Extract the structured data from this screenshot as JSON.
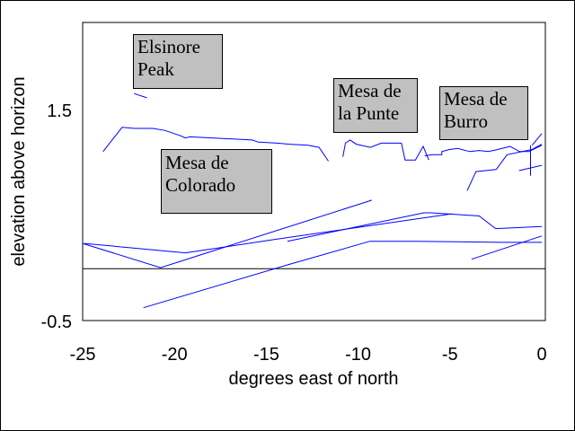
{
  "chart_data": {
    "type": "line",
    "title": "",
    "xlabel": "degrees east of north",
    "ylabel": "elevation above horizon",
    "xlim": [
      -25,
      0
    ],
    "ylim": [
      -0.5,
      2.33
    ],
    "x_ticks": [
      "-25",
      "-20",
      "-15",
      "-10",
      "-5",
      "0"
    ],
    "x_tick_values": [
      -25,
      -20,
      -15,
      -10,
      -5,
      0
    ],
    "y_ticks": [
      "1.5",
      "-0.5"
    ],
    "y_tick_values": [
      1.5,
      -0.5
    ],
    "grid": false,
    "reference_line_y": 0,
    "line_color": "#0000ff",
    "series": [
      {
        "points": [
          [
            -22.2,
            1.66
          ],
          [
            -21.5,
            1.62
          ]
        ]
      },
      {
        "points": [
          [
            -23.89,
            1.11
          ],
          [
            -22.85,
            1.34
          ],
          [
            -22.2,
            1.33
          ],
          [
            -21.18,
            1.33
          ],
          [
            -20.51,
            1.31
          ],
          [
            -19.67,
            1.26
          ],
          [
            -19.41,
            1.24
          ],
          [
            -19.15,
            1.25
          ],
          [
            -17.97,
            1.24
          ],
          [
            -15.77,
            1.22
          ],
          [
            -15.43,
            1.2
          ],
          [
            -14.41,
            1.19
          ],
          [
            -13.74,
            1.18
          ],
          [
            -12.72,
            1.17
          ],
          [
            -12.13,
            1.15
          ],
          [
            -11.62,
            1.02
          ]
        ]
      },
      {
        "points": [
          [
            -10.83,
            1.06
          ],
          [
            -10.69,
            1.19
          ],
          [
            -10.44,
            1.22
          ],
          [
            -10.1,
            1.18
          ],
          [
            -9.33,
            1.15
          ],
          [
            -8.74,
            1.19
          ],
          [
            -7.64,
            1.19
          ],
          [
            -7.44,
            1.03
          ],
          [
            -6.88,
            1.03
          ],
          [
            -6.46,
            1.16
          ],
          [
            -6.15,
            1.03
          ]
        ]
      },
      {
        "points": [
          [
            -6.37,
            1.07
          ],
          [
            -5.95,
            1.08
          ],
          [
            -5.44,
            1.08
          ],
          [
            -5.44,
            1.11
          ],
          [
            -5.02,
            1.13
          ],
          [
            -4.59,
            1.14
          ],
          [
            -3.92,
            1.11
          ],
          [
            -3.41,
            1.12
          ],
          [
            -2.9,
            1.11
          ],
          [
            -2.4,
            1.13
          ],
          [
            -1.72,
            1.16
          ],
          [
            -1.21,
            1.11
          ],
          [
            -0.7,
            1.11
          ],
          [
            0,
            1.17
          ]
        ]
      },
      {
        "points": [
          [
            -4.06,
            0.74
          ],
          [
            -3.58,
            0.92
          ],
          [
            -2.48,
            0.94
          ],
          [
            -1.89,
            1.08
          ],
          [
            -0.53,
            1.13
          ],
          [
            0,
            1.18
          ]
        ]
      },
      {
        "points": [
          [
            -0.53,
            1.17
          ],
          [
            0,
            1.28
          ]
        ]
      },
      {
        "points": [
          [
            -0.61,
            1.17
          ],
          [
            -0.61,
            0.88
          ]
        ]
      },
      {
        "points": [
          [
            -1.24,
            0.93
          ],
          [
            0,
            0.98
          ]
        ]
      },
      {
        "points": [
          [
            -25,
            0.24
          ],
          [
            -20.76,
            0.01
          ],
          [
            -9.25,
            0.65
          ]
        ]
      },
      {
        "points": [
          [
            -24.91,
            0.24
          ],
          [
            -19.41,
            0.15
          ],
          [
            -17.12,
            0.21
          ],
          [
            -14.82,
            0.27
          ],
          [
            -4.89,
            0.52
          ]
        ]
      },
      {
        "points": [
          [
            -13.85,
            0.26
          ],
          [
            -6.42,
            0.53
          ],
          [
            -6.02,
            0.53
          ],
          [
            -3.41,
            0.5
          ],
          [
            -2.51,
            0.38
          ],
          [
            0,
            0.4
          ]
        ]
      },
      {
        "points": [
          [
            -21.69,
            -0.37
          ],
          [
            -13.76,
            0.04
          ],
          [
            -9.36,
            0.26
          ],
          [
            -6.91,
            0.26
          ],
          [
            -2.19,
            0.25
          ],
          [
            0,
            0.25
          ]
        ]
      },
      {
        "points": [
          [
            -3.82,
            0.09
          ],
          [
            0,
            0.31
          ]
        ]
      }
    ],
    "annotations": [
      {
        "text": "Elsinore\nPeak"
      },
      {
        "text": "Mesa de\nColorado"
      },
      {
        "text": "Mesa de\nla Punte"
      },
      {
        "text": "Mesa de\nBurro"
      }
    ],
    "annotation_fill": "#c0c0c0"
  }
}
